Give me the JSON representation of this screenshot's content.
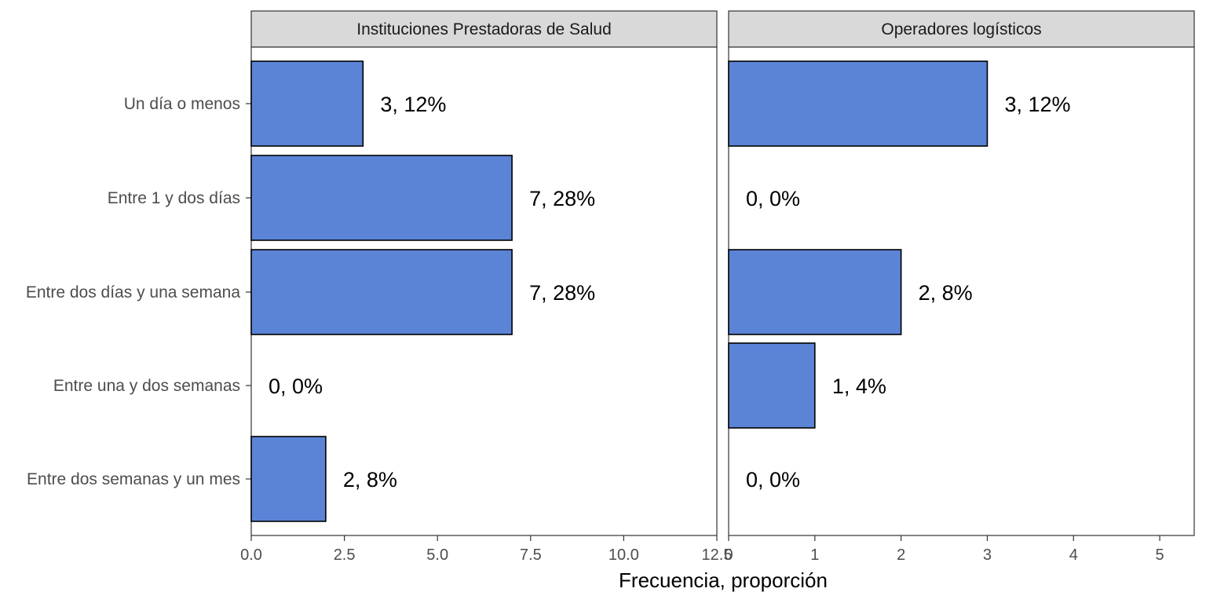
{
  "chart_data": {
    "type": "bar",
    "orientation": "horizontal",
    "xlabel": "Frecuencia, proporción",
    "categories": [
      "Un día o menos",
      "Entre 1 y dos días",
      "Entre dos días y una semana",
      "Entre una y dos semanas",
      "Entre dos semanas y un mes"
    ],
    "bar_color": "#5b84d6",
    "panels": [
      {
        "title": "Instituciones Prestadoras de Salud",
        "values": [
          3,
          7,
          7,
          0,
          2
        ],
        "labels": [
          "3, 12%",
          "7, 28%",
          "7, 28%",
          "0, 0%",
          "2, 8%"
        ],
        "xlim": [
          0,
          12.5
        ],
        "ticks": [
          0,
          2.5,
          5,
          7.5,
          10,
          12.5
        ],
        "tick_labels": [
          "0.0",
          "2.5",
          "5.0",
          "7.5",
          "10.0",
          "12.5"
        ]
      },
      {
        "title": "Operadores logísticos",
        "values": [
          3,
          0,
          2,
          1,
          0
        ],
        "labels": [
          "3, 12%",
          "0, 0%",
          "2, 8%",
          "1, 4%",
          "0, 0%"
        ],
        "xlim": [
          0,
          5.4
        ],
        "ticks": [
          0,
          1,
          2,
          3,
          4,
          5
        ],
        "tick_labels": [
          "0",
          "1",
          "2",
          "3",
          "4",
          "5"
        ]
      }
    ]
  }
}
